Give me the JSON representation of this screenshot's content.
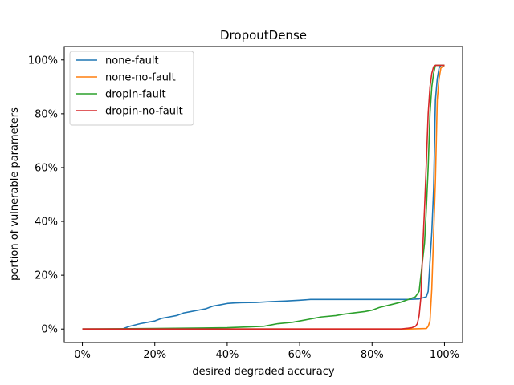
{
  "chart_data": {
    "type": "line",
    "title": "DropoutDense",
    "xlabel": "desired degraded accuracy",
    "ylabel": "portion of vulnerable parameters",
    "xlim": [
      -0.05,
      1.05
    ],
    "ylim": [
      -0.05,
      1.05
    ],
    "xticks": [
      0,
      0.2,
      0.4,
      0.6,
      0.8,
      1.0
    ],
    "xtick_labels": [
      "0%",
      "20%",
      "40%",
      "60%",
      "80%",
      "100%"
    ],
    "yticks": [
      0,
      0.2,
      0.4,
      0.6,
      0.8,
      1.0
    ],
    "ytick_labels": [
      "0%",
      "20%",
      "40%",
      "60%",
      "80%",
      "100%"
    ],
    "grid": false,
    "legend_position": "top-left",
    "series": [
      {
        "name": "none-fault",
        "color": "#1f77b4",
        "x": [
          0,
          0.11,
          0.13,
          0.16,
          0.18,
          0.2,
          0.22,
          0.24,
          0.26,
          0.28,
          0.3,
          0.32,
          0.34,
          0.36,
          0.38,
          0.4,
          0.42,
          0.44,
          0.48,
          0.52,
          0.56,
          0.6,
          0.63,
          0.7,
          0.8,
          0.9,
          0.93,
          0.95,
          0.955,
          0.96,
          0.965,
          0.97,
          0.975,
          0.98,
          0.985,
          0.99,
          1.0
        ],
        "y": [
          0,
          0,
          0.01,
          0.02,
          0.025,
          0.03,
          0.04,
          0.045,
          0.05,
          0.06,
          0.065,
          0.07,
          0.075,
          0.085,
          0.09,
          0.095,
          0.097,
          0.098,
          0.099,
          0.102,
          0.104,
          0.107,
          0.11,
          0.11,
          0.11,
          0.11,
          0.112,
          0.12,
          0.14,
          0.25,
          0.36,
          0.52,
          0.85,
          0.93,
          0.97,
          0.98,
          0.98
        ]
      },
      {
        "name": "none-no-fault",
        "color": "#ff7f0e",
        "x": [
          0,
          0.5,
          0.9,
          0.95,
          0.955,
          0.96,
          0.965,
          0.97,
          0.975,
          0.98,
          0.985,
          0.99,
          1.0
        ],
        "y": [
          0,
          0,
          0,
          0.002,
          0.01,
          0.03,
          0.15,
          0.35,
          0.55,
          0.85,
          0.93,
          0.97,
          0.98
        ]
      },
      {
        "name": "dropin-fault",
        "color": "#2ca02c",
        "x": [
          0,
          0.2,
          0.4,
          0.46,
          0.5,
          0.52,
          0.54,
          0.58,
          0.6,
          0.62,
          0.64,
          0.66,
          0.7,
          0.72,
          0.75,
          0.78,
          0.8,
          0.82,
          0.85,
          0.88,
          0.9,
          0.91,
          0.92,
          0.93,
          0.935,
          0.94,
          0.945,
          0.95,
          0.955,
          0.96,
          0.965,
          0.97,
          0.975,
          0.98,
          0.985,
          0.99,
          1.0
        ],
        "y": [
          0,
          0.002,
          0.005,
          0.008,
          0.01,
          0.015,
          0.02,
          0.025,
          0.03,
          0.035,
          0.04,
          0.045,
          0.05,
          0.055,
          0.06,
          0.065,
          0.07,
          0.08,
          0.09,
          0.1,
          0.11,
          0.115,
          0.12,
          0.14,
          0.2,
          0.26,
          0.32,
          0.45,
          0.6,
          0.8,
          0.9,
          0.95,
          0.98,
          0.98,
          0.98,
          0.98,
          0.98
        ]
      },
      {
        "name": "dropin-no-fault",
        "color": "#d62728",
        "x": [
          0,
          0.5,
          0.88,
          0.9,
          0.91,
          0.92,
          0.925,
          0.93,
          0.935,
          0.94,
          0.945,
          0.95,
          0.955,
          0.96,
          0.965,
          0.97,
          0.975,
          0.98,
          1.0
        ],
        "y": [
          0,
          0,
          0,
          0.003,
          0.005,
          0.01,
          0.02,
          0.05,
          0.12,
          0.3,
          0.45,
          0.62,
          0.8,
          0.9,
          0.95,
          0.975,
          0.98,
          0.98,
          0.98
        ]
      }
    ]
  }
}
